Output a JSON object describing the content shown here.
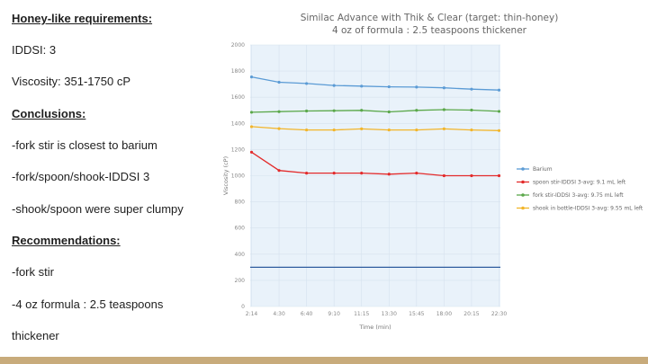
{
  "notes": {
    "requirements_heading": "Honey-like requirements:",
    "iddsi": "IDDSI: 3",
    "viscosity": "Viscosity: 351-1750 cP",
    "conclusions_heading": "Conclusions:",
    "conclusion_1": "-fork stir is closest to barium",
    "conclusion_2": "-fork/spoon/shook-IDDSI 3",
    "conclusion_3": "-shook/spoon were super clumpy",
    "recommendations_heading": "Recommendations:",
    "recommendation_1": "-fork stir",
    "recommendation_2": "-4 oz formula : 2.5 teaspoons",
    "recommendation_3": "thickener"
  },
  "colors": {
    "plot_background": "#e9f2fa",
    "reference_line": "#2f5d9e",
    "footer_bar": "#c8ab7b"
  },
  "chart_data": {
    "type": "line",
    "title": "Similac Advance with Thik & Clear (target: thin-honey)",
    "subtitle": "4 oz of formula : 2.5 teaspoons thickener",
    "xlabel": "Time (min)",
    "ylabel": "Viscosity (cP)",
    "ylim": [
      0,
      2000
    ],
    "yticks": [
      0,
      200,
      400,
      600,
      800,
      1000,
      1200,
      1400,
      1600,
      1800,
      2000
    ],
    "categories": [
      "2:14",
      "4:30",
      "6:40",
      "9:10",
      "11:15",
      "13:30",
      "15:45",
      "18:00",
      "20:15",
      "22:30"
    ],
    "reference_line": 300,
    "grid": true,
    "legend_position": "right",
    "series": [
      {
        "name": "Barium",
        "color": "#5b9bd5",
        "values": [
          1755,
          1715,
          1705,
          1690,
          1685,
          1680,
          1678,
          1672,
          1662,
          1655
        ]
      },
      {
        "name": "spoon stir-IDDSI 3-avg: 9.1 mL left",
        "color": "#e32b2b",
        "values": [
          1180,
          1040,
          1020,
          1020,
          1020,
          1012,
          1020,
          1000,
          1000,
          1000
        ]
      },
      {
        "name": "fork stir-IDDSI 3-avg: 9.75 mL left",
        "color": "#5ba84a",
        "values": [
          1485,
          1490,
          1495,
          1497,
          1500,
          1488,
          1500,
          1505,
          1502,
          1492
        ]
      },
      {
        "name": "shook in bottle-IDDSI 3-avg: 9.55 mL left",
        "color": "#f2b52a",
        "values": [
          1375,
          1360,
          1350,
          1350,
          1358,
          1350,
          1350,
          1358,
          1350,
          1345
        ]
      }
    ]
  }
}
